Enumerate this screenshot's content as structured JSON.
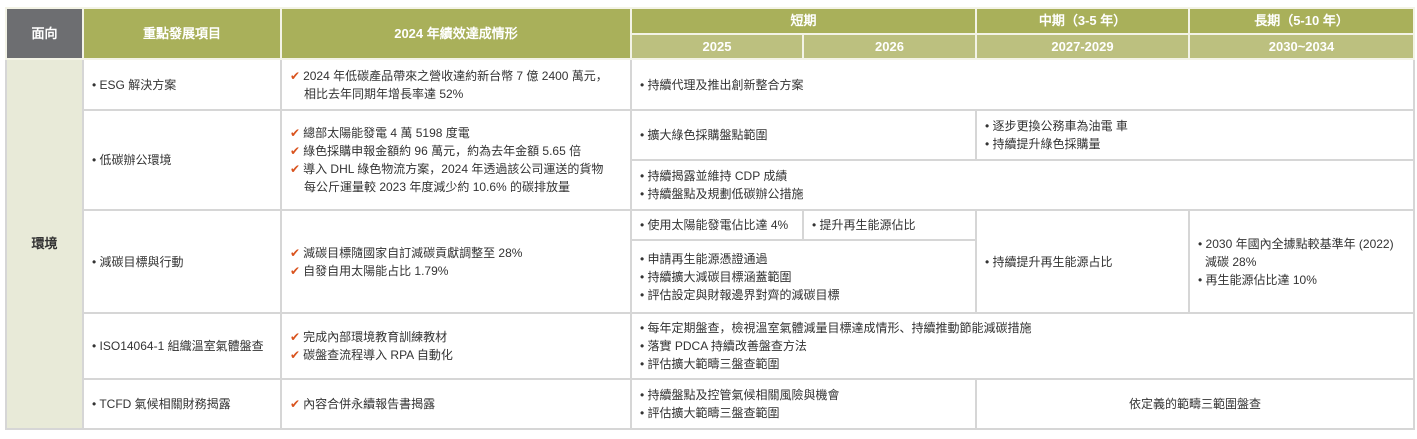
{
  "header": {
    "aspect": "面向",
    "item": "重點發展項目",
    "performance": "2024 年績效達成情形",
    "short_term": "短期",
    "mid_term": "中期（3-5 年）",
    "long_term": "長期（5-10 年）",
    "y2025": "2025",
    "y2026": "2026",
    "y2027": "2027-2029",
    "y2030": "2030~2034"
  },
  "aspect": "環境",
  "colors": {
    "header_olive": "#a9b05a",
    "header_dark": "#6d6e71",
    "check": "#d9531e"
  },
  "rows": [
    {
      "item": "• ESG 解決方案",
      "perf": [
        "2024 年低碳產品帶來之營收達約新台幣 7 億 2400 萬元，",
        "相比去年同期年增長率達 52%"
      ],
      "all": [
        "• 持續代理及推出創新整合方案"
      ]
    },
    {
      "item": "• 低碳辦公環境",
      "perf": [
        "總部太陽能發電 4 萬 5198 度電",
        "綠色採購申報金額約 96 萬元，約為去年金額 5.65 倍",
        "導入 DHL 綠色物流方案，2024 年透過該公司運送的貨物",
        "每公斤運量較 2023 年度減少約 10.6% 的碳排放量"
      ],
      "short": [
        "• 擴大綠色採購盤點範圍"
      ],
      "midlong": [
        "• 逐步更換公務車為油電 車",
        "• 持續提升綠色採購量"
      ],
      "all": [
        "• 持續揭露並維持 CDP 成績",
        "• 持續盤點及規劃低碳辦公措施"
      ]
    },
    {
      "item": "• 減碳目標與行動",
      "perf": [
        "減碳目標隨國家自訂減碳貢獻調整至 28%",
        "自發自用太陽能占比 1.79%"
      ],
      "y2025": [
        "• 使用太陽能發電佔比達 4%"
      ],
      "y2026": [
        "• 提升再生能源佔比"
      ],
      "short": [
        "• 申請再生能源憑證通過",
        "• 持續擴大減碳目標涵蓋範圍",
        "• 評估設定與財報邊界對齊的減碳目標"
      ],
      "mid": [
        "• 持續提升再生能源占比"
      ],
      "long": [
        "• 2030 年國內全據點較基準年 (2022)",
        "減碳 28%",
        "• 再生能源佔比達 10%"
      ]
    },
    {
      "item": "• ISO14064-1 組織溫室氣體盤查",
      "perf": [
        "完成內部環境教育訓練教材",
        "碳盤查流程導入 RPA 自動化"
      ],
      "all": [
        "• 每年定期盤查，檢視溫室氣體減量目標達成情形、持續推動節能減碳措施",
        "• 落實 PDCA 持續改善盤查方法",
        "• 評估擴大範疇三盤查範圍"
      ]
    },
    {
      "item": "• TCFD 氣候相關財務揭露",
      "perf": [
        "內容合併永續報告書揭露"
      ],
      "short": [
        "• 持續盤點及控管氣候相關風險與機會",
        "• 評估擴大範疇三盤查範圍"
      ],
      "midlong": "依定義的範疇三範圍盤查"
    }
  ]
}
